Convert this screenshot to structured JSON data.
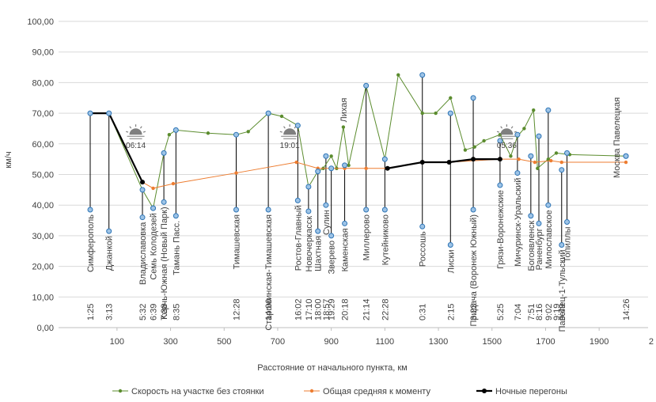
{
  "chart_data": {
    "type": "line",
    "title": "",
    "xlabel": "Расстояние от начального пункта, км",
    "ylabel": "км/ч",
    "xlim": [
      0,
      2000
    ],
    "ylim": [
      0,
      100
    ],
    "x_ticks": [
      100,
      300,
      500,
      700,
      900,
      1100,
      1300,
      1500,
      1700,
      1900
    ],
    "x_tick_labels": [
      "100",
      "300",
      "500",
      "700",
      "900",
      "1100",
      "1300",
      "1500",
      "1700",
      "1900"
    ],
    "x_edge_label": "2",
    "y_ticks": [
      0,
      10,
      20,
      30,
      40,
      50,
      60,
      70,
      80,
      90,
      100
    ],
    "y_tick_labels": [
      "0,00",
      "10,00",
      "20,00",
      "30,00",
      "40,00",
      "50,00",
      "60,00",
      "70,00",
      "80,00",
      "90,00",
      "100,00"
    ],
    "colors": {
      "green": "#5b8c2e",
      "orange": "#ed7d31",
      "night": "#000000",
      "marker_fill": "#9dc3e6",
      "marker_edge": "#2e75b6",
      "axis": "#bfbfbf"
    },
    "series": [
      {
        "name": "Скорость на участке без стоянки",
        "color": "#5b8c2e",
        "x": [
          0,
          70,
          195,
          235,
          275,
          295,
          320,
          440,
          545,
          590,
          665,
          715,
          775,
          815,
          850,
          870,
          900,
          920,
          945,
          965,
          1030,
          1100,
          1150,
          1240,
          1290,
          1345,
          1400,
          1435,
          1470,
          1530,
          1570,
          1595,
          1620,
          1655,
          1670,
          1710,
          1740,
          1790,
          2000
        ],
        "y": [
          70,
          70,
          45,
          39,
          57,
          63,
          64.5,
          63.5,
          63,
          64,
          70,
          69,
          66,
          46,
          51,
          52,
          56,
          52,
          65.5,
          53,
          79,
          55,
          82.5,
          70,
          70,
          75,
          58,
          59,
          61,
          63,
          56,
          62.5,
          65,
          71,
          52,
          55,
          57,
          56.5,
          56
        ]
      },
      {
        "name": "Общая средняя к моменту",
        "color": "#ed7d31",
        "x": [
          0,
          70,
          195,
          235,
          310,
          545,
          770,
          850,
          950,
          1030,
          1110,
          1240,
          1340,
          1530,
          1600,
          1660,
          1720,
          1760,
          2000
        ],
        "y": [
          70,
          70,
          47.5,
          45.5,
          47,
          50.5,
          54,
          52,
          52,
          52,
          52,
          54,
          54,
          55,
          55,
          54,
          54.5,
          54,
          54
        ]
      },
      {
        "name": "Ночные перегоны",
        "color": "#000000",
        "x": [
          0,
          70,
          195,
          235,
          310,
          545,
          770,
          850,
          950,
          1030,
          1110,
          1240,
          1340,
          1430,
          1530
        ],
        "y": [
          70,
          70,
          47.5,
          null,
          null,
          null,
          null,
          null,
          null,
          null,
          52,
          54,
          54,
          55,
          55
        ],
        "segments": [
          [
            [
              0,
              70
            ],
            [
              70,
              70
            ],
            [
              195,
              47.5
            ]
          ],
          [
            [
              1110,
              52
            ],
            [
              1240,
              54
            ],
            [
              1340,
              54
            ],
            [
              1430,
              55
            ],
            [
              1530,
              55
            ]
          ]
        ]
      }
    ],
    "stations": [
      {
        "name": "Симферополь",
        "x": 0,
        "time": "1:25",
        "low": 38.5,
        "high": 70
      },
      {
        "name": "Джанкой",
        "x": 70,
        "time": "3:13",
        "low": 31.5,
        "high": 70
      },
      {
        "name": "Владиславовка",
        "x": 195,
        "time": "5:32",
        "low": 36,
        "high": 45
      },
      {
        "name": "Семь Колодезей",
        "x": 235,
        "time": "6:39",
        "low": 39,
        "high": 39
      },
      {
        "name": "Керчь-Южная (Новый Парк)",
        "x": 275,
        "time": "7:38",
        "low": 41,
        "high": 57
      },
      {
        "name": "Тамань Пасс.",
        "x": 320,
        "time": "8:35",
        "low": 36.5,
        "high": 64.5
      },
      {
        "name": "Тимашевская",
        "x": 545,
        "time": "12:28",
        "low": 38.5,
        "high": 63
      },
      {
        "name": "Староминская-Тимашевская",
        "x": 665,
        "time": "14:00",
        "low": 38.5,
        "high": 70
      },
      {
        "name": "Ростов-Главный",
        "x": 775,
        "time": "16:02",
        "low": 41.5,
        "high": 66
      },
      {
        "name": "Новочеркасск",
        "x": 815,
        "time": "17:10",
        "low": 38,
        "high": 46
      },
      {
        "name": "Шахтная",
        "x": 850,
        "time": "18:00",
        "low": 31.5,
        "high": 51
      },
      {
        "name": "Сулин",
        "x": 880,
        "time": "18:57",
        "low": 40,
        "high": 56
      },
      {
        "name": "Зверево",
        "x": 900,
        "time": "19:29",
        "low": 30,
        "high": 52
      },
      {
        "name": "Каменская",
        "x": 950,
        "time": "20:18",
        "low": 34,
        "high": 53
      },
      {
        "name": "Миллерово",
        "x": 1030,
        "time": "21:14",
        "low": 38.5,
        "high": 79
      },
      {
        "name": "Кутейниково",
        "x": 1100,
        "time": "22:28",
        "low": 38.5,
        "high": 55
      },
      {
        "name": "Россошь",
        "x": 1240,
        "time": "0:31",
        "low": 33,
        "high": 82.5
      },
      {
        "name": "Лиски",
        "x": 1345,
        "time": "2:15",
        "low": 27,
        "high": 70
      },
      {
        "name": "Придача (Воронеж Южный)",
        "x": 1430,
        "time": "3:23",
        "low": 38.5,
        "high": 75
      },
      {
        "name": "Грязи-Воронежские",
        "x": 1530,
        "time": "5:25",
        "low": 46.5,
        "high": 61
      },
      {
        "name": "Мичуринск-Уральский",
        "x": 1595,
        "time": "7:04",
        "low": 50.5,
        "high": 63
      },
      {
        "name": "Богоявленск",
        "x": 1645,
        "time": "7:51",
        "low": 36.5,
        "high": 56
      },
      {
        "name": "Раненбург",
        "x": 1675,
        "time": "8:16",
        "low": 34,
        "high": 62.5
      },
      {
        "name": "Милославское",
        "x": 1710,
        "time": "9:02",
        "low": 40,
        "high": 71
      },
      {
        "name": "Павелец-1-Тульский",
        "x": 1760,
        "time": "9:49",
        "low": 27,
        "high": 51.5
      },
      {
        "name": "Топиллы",
        "x": 1780,
        "time": "",
        "low": 34.5,
        "high": 57
      },
      {
        "name": "Москва Павелецкая",
        "x": 2000,
        "time": "14:26",
        "low": 56,
        "high": 56
      }
    ],
    "extra_time_labels": [
      {
        "text": "9:19",
        "x": 1740
      }
    ],
    "annotations": [
      {
        "label": "Лихая",
        "x": 945,
        "y": 65.5,
        "kind": "station-label"
      },
      {
        "label": "06:14",
        "x": 170,
        "y": 63,
        "kind": "sunrise"
      },
      {
        "label": "19:01",
        "x": 745,
        "y": 63,
        "kind": "sunset"
      },
      {
        "label": "05:36",
        "x": 1555,
        "y": 63,
        "kind": "sunrise"
      }
    ],
    "legend": {
      "position": "bottom",
      "items": [
        "Скорость на участке без стоянки",
        "Общая средняя к моменту",
        "Ночные перегоны"
      ]
    }
  }
}
